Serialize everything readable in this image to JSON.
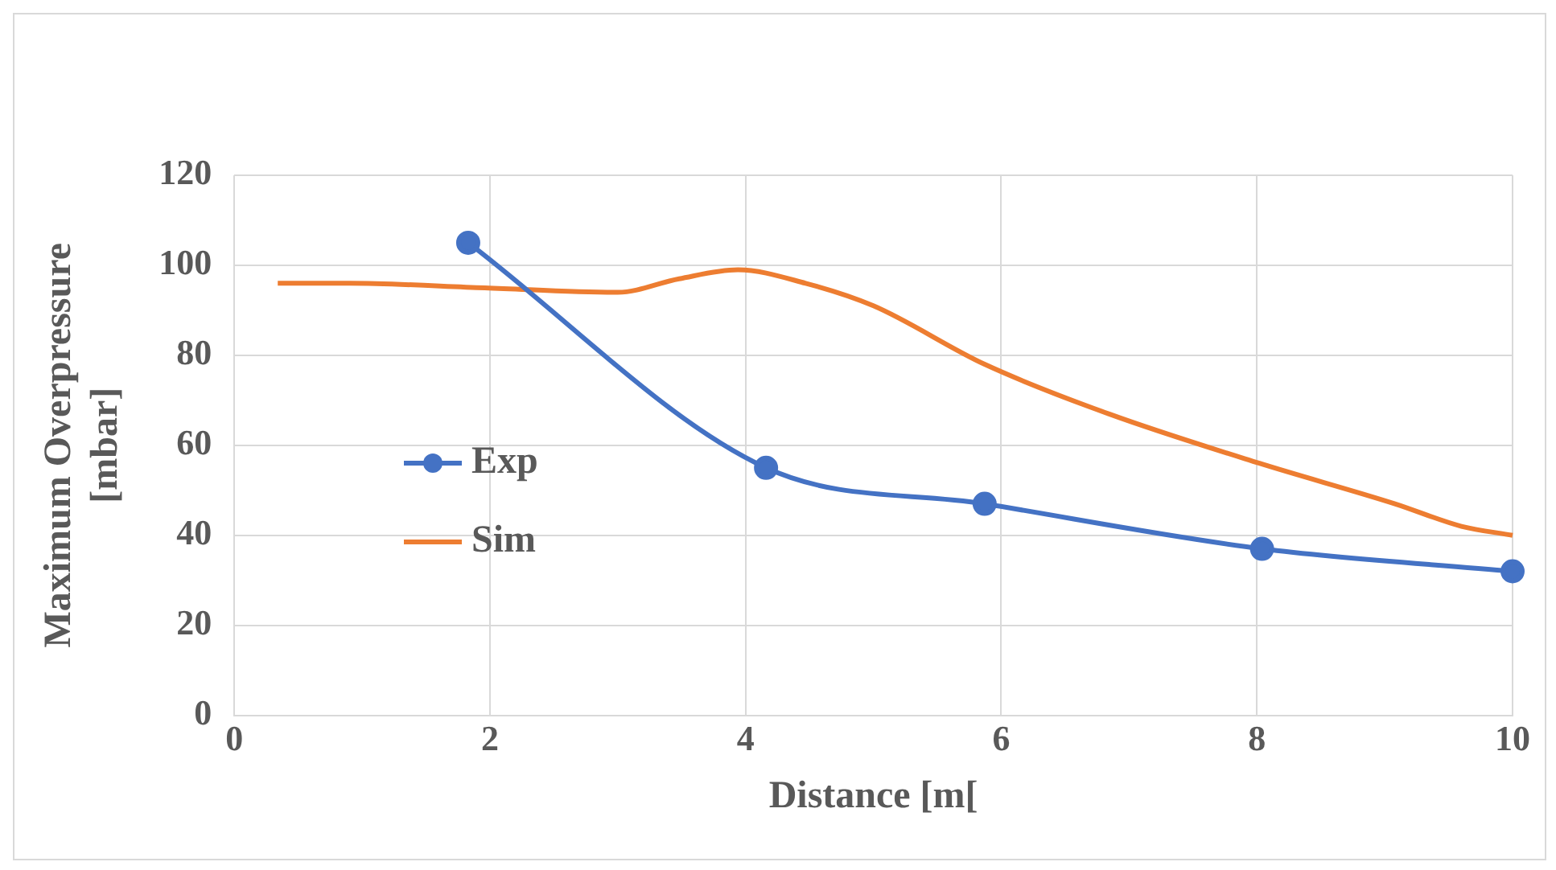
{
  "chart_data": {
    "type": "line",
    "xlabel": "Distance [m[",
    "ylabel": "Maximum Overpressure [mbar]",
    "xlim": [
      0,
      10
    ],
    "xticks": [
      0,
      2,
      4,
      6,
      8,
      10
    ],
    "ylim": [
      0,
      120
    ],
    "yticks": [
      0,
      20,
      40,
      60,
      80,
      100,
      120
    ],
    "grid": true,
    "legend": "left",
    "series": [
      {
        "name": "Exp",
        "color": "#4472c4",
        "marker": "circle",
        "x": [
          1.83,
          4.16,
          5.87,
          8.04,
          10
        ],
        "values": [
          105,
          55,
          47,
          37,
          32
        ]
      },
      {
        "name": "Sim",
        "color": "#ed7d31",
        "marker": "none",
        "x": [
          0.34,
          0.9,
          1.96,
          3.0,
          3.48,
          3.94,
          4.47,
          5.0,
          5.87,
          6.84,
          8.02,
          9.08,
          9.6,
          10
        ],
        "values": [
          96,
          96,
          95,
          94,
          97,
          99,
          96,
          91,
          78,
          67,
          56,
          47,
          42,
          40
        ]
      }
    ]
  }
}
